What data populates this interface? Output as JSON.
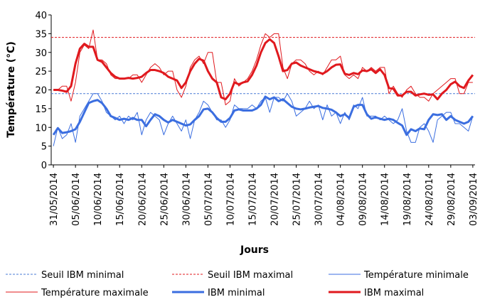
{
  "chart_data": {
    "type": "line",
    "y_label": "Température (°C)",
    "x_label": "Jours",
    "categories": [
      "31/05/2014",
      null,
      null,
      null,
      null,
      "05/06/2014",
      null,
      null,
      null,
      null,
      "10/06/2014",
      null,
      null,
      null,
      null,
      "15/06/2014",
      null,
      null,
      null,
      null,
      "20/06/2014",
      null,
      null,
      null,
      null,
      "25/06/2014",
      null,
      null,
      null,
      null,
      "30/06/2014",
      null,
      null,
      null,
      null,
      "05/07/2014",
      null,
      null,
      null,
      null,
      "10/07/2014",
      null,
      null,
      null,
      null,
      "15/07/2014",
      null,
      null,
      null,
      null,
      "20/07/2014",
      null,
      null,
      null,
      null,
      "25/07/2014",
      null,
      null,
      null,
      null,
      "30/07/2014",
      null,
      null,
      null,
      null,
      "04/08/2014",
      null,
      null,
      null,
      null,
      "09/08/2014",
      null,
      null,
      null,
      null,
      "14/08/2014",
      null,
      null,
      null,
      null,
      "19/08/2014",
      null,
      null,
      null,
      null,
      "24/08/2014",
      null,
      null,
      null,
      null,
      "29/08/2014",
      null,
      null,
      null,
      null,
      "03/09/2014"
    ],
    "ylim": [
      0,
      40
    ],
    "yticks": [
      0,
      5,
      10,
      15,
      20,
      25,
      30,
      35,
      40
    ],
    "thresholds": [
      {
        "name": "Seuil IBM minimal",
        "color": "#4a7bd6",
        "value": 19
      },
      {
        "name": "Seuil IBM maximal",
        "color": "#e0191e",
        "value": 34
      }
    ],
    "series": [
      {
        "name": "Température minimale",
        "color": "#3b6ee0",
        "width": 1,
        "values": [
          5,
          10,
          7,
          8,
          11,
          6,
          13,
          15,
          17,
          19,
          19,
          17,
          14,
          13,
          12,
          13,
          11,
          13,
          12,
          14,
          8,
          12,
          14,
          13,
          12,
          8,
          11,
          13,
          11,
          9,
          12,
          7,
          12,
          14,
          17,
          16,
          14,
          12,
          12,
          10,
          12,
          16,
          15,
          15,
          15,
          16,
          15,
          17,
          18,
          14,
          18,
          18,
          17,
          19,
          17,
          13,
          14,
          15,
          17,
          15,
          16,
          12,
          16,
          13,
          14,
          11,
          14,
          12,
          16,
          15,
          18,
          13,
          13,
          13,
          12,
          13,
          12,
          11,
          12,
          15,
          9,
          6,
          6,
          10,
          11,
          9,
          6,
          12,
          13,
          14,
          14,
          11,
          11,
          10,
          9,
          13
        ]
      },
      {
        "name": "Température maximale",
        "color": "#e0191e",
        "width": 1,
        "values": [
          20,
          20,
          21,
          21,
          17,
          22,
          30,
          32,
          31,
          36,
          28,
          28,
          27,
          24,
          23,
          23,
          23,
          23,
          24,
          24,
          22,
          24,
          26,
          27,
          26,
          24,
          25,
          25,
          20,
          18,
          21,
          26,
          28,
          29,
          27,
          30,
          30,
          22,
          22,
          16,
          17,
          23,
          21,
          22,
          23,
          25,
          28,
          32,
          35,
          34,
          35,
          35,
          26,
          23,
          27,
          28,
          28,
          27,
          25,
          24,
          25,
          24,
          26,
          28,
          28,
          29,
          24,
          23,
          24,
          23,
          26,
          25,
          26,
          25,
          26,
          26,
          19,
          21,
          19,
          18,
          20,
          21,
          19,
          18,
          18,
          17,
          19,
          20,
          21,
          22,
          23,
          23,
          19,
          19,
          22,
          22
        ]
      },
      {
        "name": "IBM minimal",
        "color": "#3b6ee0",
        "width": 3,
        "values": [
          8,
          9.8,
          8.5,
          8.7,
          9,
          9.5,
          11.5,
          14,
          16.5,
          17,
          17.3,
          16.5,
          15,
          13,
          12.5,
          12,
          12.3,
          12,
          12.5,
          12,
          12,
          10.3,
          12,
          13.5,
          13,
          12,
          11.3,
          12,
          11.5,
          11,
          10.5,
          10.8,
          12,
          13,
          14.8,
          15,
          14,
          12.5,
          11.5,
          11.5,
          12.5,
          14.5,
          14.8,
          14.5,
          14.5,
          14.5,
          15,
          16,
          18.2,
          17.5,
          18,
          17,
          17.5,
          16.5,
          15.5,
          15,
          14.8,
          15,
          15.3,
          15.5,
          15.7,
          15.2,
          15,
          14.7,
          14,
          13,
          13.5,
          12.5,
          15.5,
          16,
          16,
          13.5,
          12.3,
          12.7,
          12.3,
          12,
          12.3,
          12,
          11.2,
          10.5,
          8,
          9.5,
          9,
          9.7,
          9.5,
          12,
          13.5,
          13.3,
          13.5,
          12,
          13,
          12,
          11.5,
          11,
          11.5,
          13
        ]
      },
      {
        "name": "IBM maximal",
        "color": "#e0191e",
        "width": 3,
        "values": [
          20,
          20,
          19.8,
          19.5,
          21,
          27,
          31,
          32.3,
          31.5,
          31.5,
          28,
          27.5,
          26,
          24.5,
          23.5,
          23,
          23,
          23.2,
          23,
          23.2,
          23.5,
          24.5,
          25.3,
          25.3,
          25,
          24.5,
          23.5,
          23,
          22.5,
          20.5,
          22,
          25,
          27,
          28.3,
          27.8,
          25,
          23,
          22,
          18,
          17.5,
          19,
          22,
          21.5,
          22,
          22.3,
          24,
          26.5,
          30,
          32.5,
          33.5,
          32.5,
          29,
          25,
          25.3,
          27,
          27.3,
          26.5,
          26,
          25.5,
          25,
          24.7,
          24.3,
          25,
          26,
          26.7,
          26.8,
          24.3,
          24,
          24.5,
          24.2,
          25.2,
          25,
          25.5,
          24.5,
          25.5,
          24,
          20.5,
          20.3,
          18.5,
          18.5,
          19.5,
          19.5,
          18.5,
          18.8,
          19,
          18.7,
          18.8,
          17.5,
          19,
          20,
          21.5,
          22.2,
          21,
          20.5,
          22.5,
          24
        ]
      }
    ]
  }
}
